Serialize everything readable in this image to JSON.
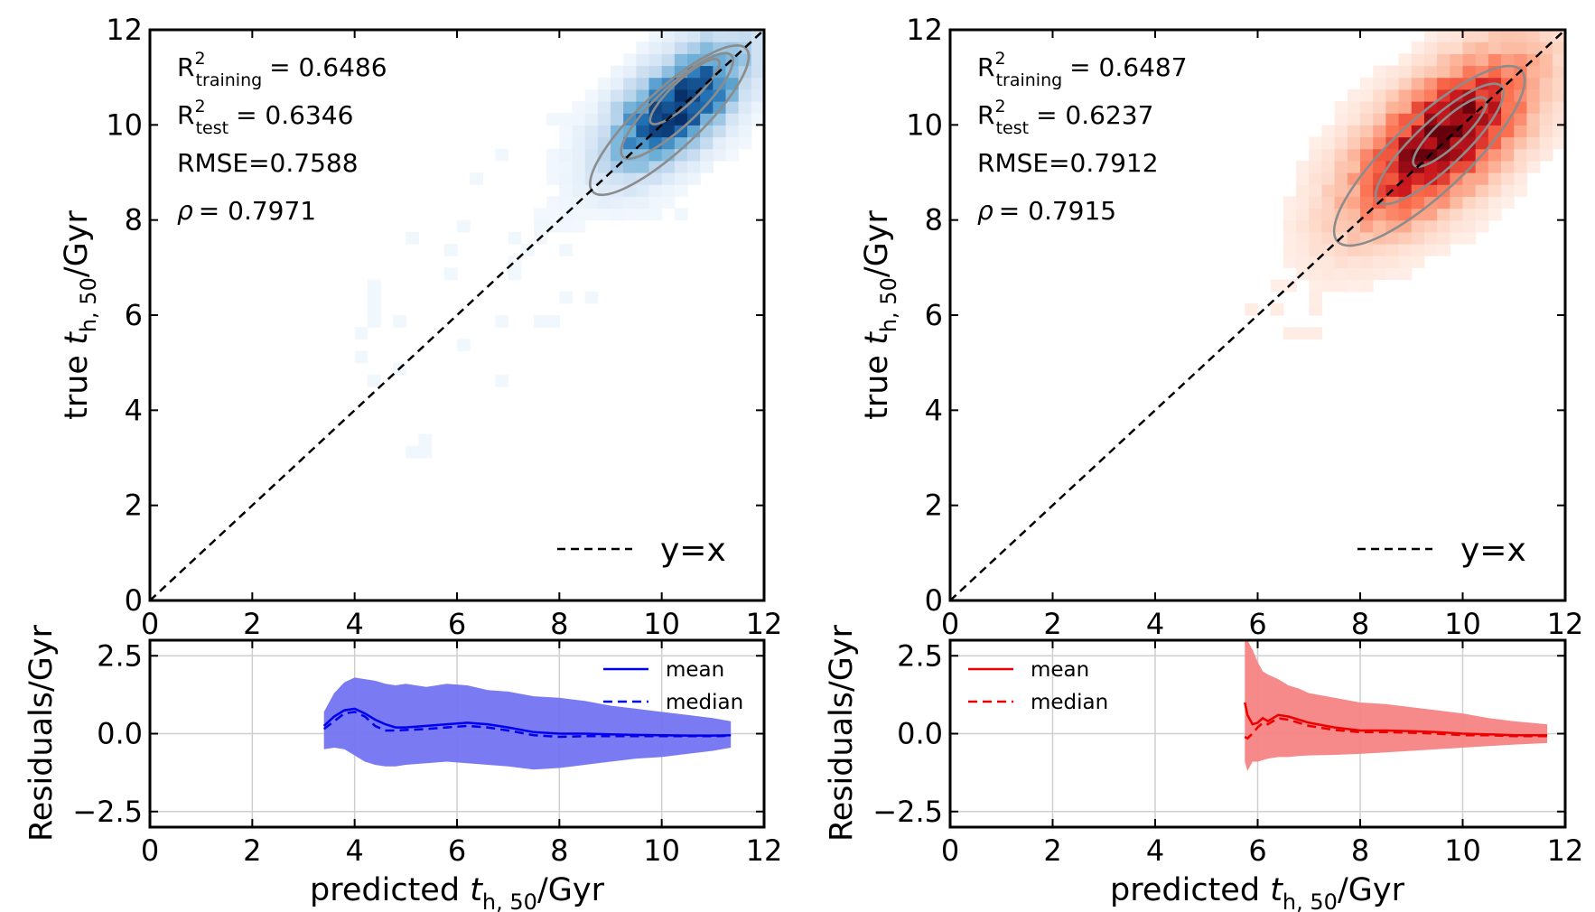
{
  "chart_data": [
    {
      "panel": "left-top",
      "type": "heatmap",
      "cmap": "Blues",
      "xlim": [
        0,
        12
      ],
      "ylim": [
        0,
        12
      ],
      "xticks": [
        "0",
        "2",
        "4",
        "6",
        "8",
        "10",
        "12"
      ],
      "yticks": [
        "0",
        "2",
        "4",
        "6",
        "8",
        "10",
        "12"
      ],
      "ylabel_prefix": "true ",
      "ylabel_var": "t",
      "ylabel_sub": "h, 50",
      "ylabel_suffix": "/Gyr",
      "stats": {
        "r2_training_label": "R",
        "r2_training_sub": "training",
        "r2_training_value": "= 0.6486",
        "r2_test_label": "R",
        "r2_test_sub": "test",
        "r2_test_value": "= 0.6346",
        "rmse": "RMSE=0.7588",
        "rho_symbol": "ρ",
        "rho_value": "= 0.7971"
      },
      "legend_label": "y=x",
      "density": {
        "cx": 10.3,
        "cy": 10.4,
        "spread_major": 1.15,
        "spread_minor": 0.55,
        "xmin": 4.0,
        "ymin": 3.0
      },
      "contours": [
        {
          "cx": 10.15,
          "cy": 10.1,
          "a": 2.05,
          "b": 0.62
        },
        {
          "cx": 10.3,
          "cy": 10.4,
          "a": 1.45,
          "b": 0.42
        },
        {
          "cx": 10.45,
          "cy": 10.7,
          "a": 0.9,
          "b": 0.25
        }
      ]
    },
    {
      "panel": "right-top",
      "type": "heatmap",
      "cmap": "Reds",
      "xlim": [
        0,
        12
      ],
      "ylim": [
        0,
        12
      ],
      "xticks": [
        "0",
        "2",
        "4",
        "6",
        "8",
        "10",
        "12"
      ],
      "yticks": [
        "0",
        "2",
        "4",
        "6",
        "8",
        "10",
        "12"
      ],
      "ylabel_prefix": "true ",
      "ylabel_var": "t",
      "ylabel_sub": "h, 50",
      "ylabel_suffix": "/Gyr",
      "stats": {
        "r2_training_label": "R",
        "r2_training_sub": "training",
        "r2_training_value": "= 0.6487",
        "r2_test_label": "R",
        "r2_test_sub": "test",
        "r2_test_value": "= 0.6237",
        "rmse": "RMSE=0.7912",
        "rho_symbol": "ρ",
        "rho_value": "= 0.7915"
      },
      "legend_label": "y=x",
      "density": {
        "cx": 9.6,
        "cy": 9.7,
        "spread_major": 1.5,
        "spread_minor": 0.7,
        "xmin": 5.5,
        "ymin": 3.0
      },
      "contours": [
        {
          "cx": 9.35,
          "cy": 9.35,
          "a": 2.45,
          "b": 0.78
        },
        {
          "cx": 9.55,
          "cy": 9.6,
          "a": 1.65,
          "b": 0.5
        },
        {
          "cx": 9.75,
          "cy": 9.85,
          "a": 0.95,
          "b": 0.28
        }
      ]
    },
    {
      "panel": "left-bottom",
      "type": "line",
      "xlim": [
        0,
        12
      ],
      "ylim": [
        -3,
        3
      ],
      "xticks": [
        "0",
        "2",
        "4",
        "6",
        "8",
        "10",
        "12"
      ],
      "yticks": [
        "2.5",
        "0.0",
        "−2.5"
      ],
      "ytick_values": [
        2.5,
        0.0,
        -2.5
      ],
      "xlabel_prefix": "predicted ",
      "xlabel_var": "t",
      "xlabel_sub": "h, 50",
      "xlabel_suffix": "/Gyr",
      "ylabel": "Residuals/Gyr",
      "grid": true,
      "color": "#0000ee",
      "fill_color": "#7373f2",
      "legend": [
        "mean",
        "median"
      ],
      "x": [
        3.4,
        3.6,
        3.8,
        4.0,
        4.2,
        4.4,
        4.6,
        4.8,
        5.0,
        5.4,
        5.8,
        6.2,
        6.6,
        7.0,
        7.5,
        8.0,
        8.5,
        9.0,
        9.5,
        10.0,
        10.5,
        11.0,
        11.35
      ],
      "mean": [
        0.25,
        0.55,
        0.75,
        0.8,
        0.65,
        0.45,
        0.3,
        0.2,
        0.2,
        0.25,
        0.3,
        0.35,
        0.3,
        0.2,
        0.05,
        0.0,
        0.0,
        -0.02,
        -0.04,
        -0.05,
        -0.06,
        -0.06,
        -0.05
      ],
      "median": [
        0.15,
        0.4,
        0.65,
        0.7,
        0.55,
        0.25,
        0.1,
        0.1,
        0.12,
        0.15,
        0.2,
        0.25,
        0.2,
        0.1,
        -0.05,
        -0.1,
        -0.08,
        -0.08,
        -0.08,
        -0.08,
        -0.08,
        -0.08,
        -0.07
      ],
      "upper": [
        0.7,
        1.3,
        1.65,
        1.8,
        1.75,
        1.7,
        1.6,
        1.55,
        1.6,
        1.5,
        1.6,
        1.55,
        1.4,
        1.35,
        1.2,
        1.15,
        1.05,
        0.9,
        0.8,
        0.7,
        0.6,
        0.5,
        0.4
      ],
      "lower": [
        -0.5,
        -0.45,
        -0.5,
        -0.7,
        -0.9,
        -1.0,
        -1.05,
        -1.05,
        -1.0,
        -0.95,
        -0.9,
        -0.95,
        -1.0,
        -1.05,
        -1.15,
        -1.1,
        -1.0,
        -0.9,
        -0.8,
        -0.75,
        -0.65,
        -0.55,
        -0.45
      ]
    },
    {
      "panel": "right-bottom",
      "type": "line",
      "xlim": [
        0,
        12
      ],
      "ylim": [
        -3,
        3
      ],
      "xticks": [
        "0",
        "2",
        "4",
        "6",
        "8",
        "10",
        "12"
      ],
      "yticks": [
        "2.5",
        "0.0",
        "−2.5"
      ],
      "ytick_values": [
        2.5,
        0.0,
        -2.5
      ],
      "xlabel_prefix": "predicted ",
      "xlabel_var": "t",
      "xlabel_sub": "h, 50",
      "xlabel_suffix": "/Gyr",
      "ylabel": "Residuals/Gyr",
      "grid": true,
      "color": "#ee0000",
      "fill_color": "#f58383",
      "legend": [
        "mean",
        "median"
      ],
      "x": [
        5.75,
        5.8,
        5.9,
        6.0,
        6.1,
        6.2,
        6.4,
        6.6,
        6.8,
        7.0,
        7.5,
        8.0,
        8.5,
        9.0,
        9.5,
        10.0,
        10.5,
        11.0,
        11.65
      ],
      "mean": [
        1.0,
        0.6,
        0.3,
        0.35,
        0.5,
        0.4,
        0.6,
        0.55,
        0.45,
        0.35,
        0.2,
        0.1,
        0.1,
        0.08,
        0.05,
        0.0,
        -0.02,
        -0.05,
        -0.05
      ],
      "median": [
        -0.1,
        -0.15,
        0.0,
        0.2,
        0.35,
        0.3,
        0.5,
        0.45,
        0.35,
        0.25,
        0.12,
        0.05,
        0.05,
        0.03,
        0.0,
        -0.05,
        -0.05,
        -0.08,
        -0.08
      ],
      "upper": [
        3.0,
        3.0,
        2.7,
        2.3,
        2.0,
        1.9,
        1.75,
        1.55,
        1.45,
        1.3,
        1.15,
        1.0,
        0.95,
        0.85,
        0.75,
        0.65,
        0.5,
        0.4,
        0.3
      ],
      "lower": [
        -0.9,
        -1.2,
        -0.9,
        -0.9,
        -0.85,
        -0.8,
        -0.75,
        -0.75,
        -0.72,
        -0.7,
        -0.68,
        -0.65,
        -0.6,
        -0.55,
        -0.5,
        -0.45,
        -0.4,
        -0.35,
        -0.3
      ]
    }
  ]
}
